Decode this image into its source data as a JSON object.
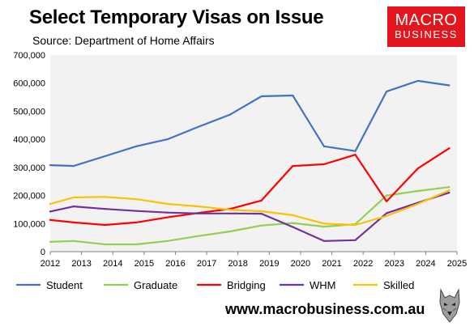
{
  "header": {
    "title": "Select Temporary Visas on Issue",
    "subtitle": "Source: Department of Home Affairs"
  },
  "logo": {
    "line1": "MACRO",
    "line2": "BUSINESS",
    "color": "#e3161d"
  },
  "footer": {
    "url": "www.macrobusiness.com.au",
    "icon": "wolf-icon"
  },
  "colors": {
    "student": "#4472c4",
    "graduate": "#92d050",
    "bridging": "#ff0000",
    "whm": "#7030a0",
    "skilled": "#ffc000",
    "plot_background": "#f2f2f2"
  },
  "chart_data": {
    "type": "line",
    "title": "Select Temporary Visas on Issue",
    "xlim": [
      2012,
      2025
    ],
    "ylim": [
      0,
      700000
    ],
    "x_ticks": [
      "2012",
      "2013",
      "2014",
      "2015",
      "2016",
      "2017",
      "2018",
      "2019",
      "2020",
      "2021",
      "2022",
      "2023",
      "2024",
      "2025"
    ],
    "y_ticks": [
      "0",
      "100,000",
      "200,000",
      "300,000",
      "400,000",
      "500,000",
      "600,000",
      "700,000"
    ],
    "grid": false,
    "legend_position": "bottom",
    "x": [
      2012.0,
      2012.75,
      2013.75,
      2014.75,
      2015.75,
      2016.75,
      2017.75,
      2018.75,
      2019.75,
      2020.75,
      2021.75,
      2022.75,
      2023.75,
      2024.75
    ],
    "series": [
      {
        "name": "Student",
        "color": "#4472c4",
        "values": [
          308000,
          305000,
          340000,
          375000,
          400000,
          445000,
          488000,
          553000,
          556000,
          375000,
          358000,
          570000,
          608000,
          592000
        ]
      },
      {
        "name": "Graduate",
        "color": "#92d050",
        "values": [
          35000,
          38000,
          26000,
          26000,
          38000,
          56000,
          72000,
          93000,
          102000,
          89000,
          98000,
          200000,
          216000,
          230000
        ]
      },
      {
        "name": "Bridging",
        "color": "#ff0000",
        "values": [
          113000,
          104000,
          95000,
          104000,
          122000,
          138000,
          152000,
          182000,
          305000,
          311000,
          345000,
          179000,
          296000,
          368000
        ]
      },
      {
        "name": "WHM",
        "color": "#7030a0",
        "values": [
          143000,
          161000,
          152000,
          145000,
          139000,
          136000,
          136000,
          135000,
          88000,
          38000,
          41000,
          137000,
          174000,
          210000
        ]
      },
      {
        "name": "Skilled",
        "color": "#ffc000",
        "values": [
          170000,
          193000,
          195000,
          187000,
          170000,
          161000,
          149000,
          144000,
          130000,
          100000,
          95000,
          127000,
          170000,
          218000
        ]
      }
    ]
  }
}
